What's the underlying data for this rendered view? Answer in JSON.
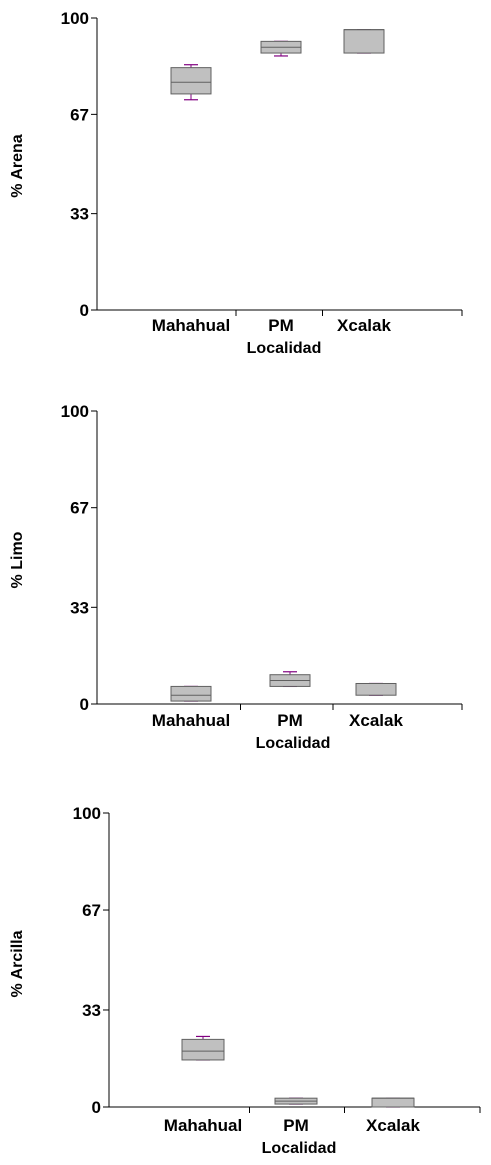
{
  "chart_data": [
    {
      "type": "box",
      "ylabel": "% Arena",
      "xlabel": "Localidad",
      "ylim": [
        0,
        100
      ],
      "yticks": [
        "0",
        "33",
        "67",
        "100"
      ],
      "categories": [
        "Mahahual",
        "PM",
        "Xcalak"
      ],
      "boxes": [
        {
          "min": 72,
          "q1": 74,
          "median": 78,
          "q3": 83,
          "max": 84
        },
        {
          "min": 87,
          "q1": 88,
          "median": 90,
          "q3": 92,
          "max": 92
        },
        {
          "min": 88,
          "q1": 88,
          "median": 96,
          "q3": 96,
          "max": 96
        }
      ],
      "box_color": "#c0c0c0",
      "whisker_color": "#800080"
    },
    {
      "type": "box",
      "ylabel": "% Limo",
      "xlabel": "Localidad",
      "ylim": [
        0,
        100
      ],
      "yticks": [
        "0",
        "33",
        "67",
        "100"
      ],
      "categories": [
        "Mahahual",
        "PM",
        "Xcalak"
      ],
      "boxes": [
        {
          "min": 1,
          "q1": 1,
          "median": 3,
          "q3": 6,
          "max": 6
        },
        {
          "min": 6,
          "q1": 6,
          "median": 8,
          "q3": 10,
          "max": 11
        },
        {
          "min": 3,
          "q1": 3,
          "median": 7,
          "q3": 7,
          "max": 7
        }
      ],
      "box_color": "#c0c0c0",
      "whisker_color": "#800080"
    },
    {
      "type": "box",
      "ylabel": "% Arcilla",
      "xlabel": "Localidad",
      "ylim": [
        0,
        100
      ],
      "yticks": [
        "0",
        "33",
        "67",
        "100"
      ],
      "categories": [
        "Mahahual",
        "PM",
        "Xcalak"
      ],
      "boxes": [
        {
          "min": 16,
          "q1": 16,
          "median": 19,
          "q3": 23,
          "max": 24
        },
        {
          "min": 1,
          "q1": 1,
          "median": 2,
          "q3": 3,
          "max": 3
        },
        {
          "min": 0,
          "q1": 0,
          "median": 3,
          "q3": 3,
          "max": 3
        }
      ],
      "box_color": "#c0c0c0",
      "whisker_color": "#800080"
    }
  ]
}
